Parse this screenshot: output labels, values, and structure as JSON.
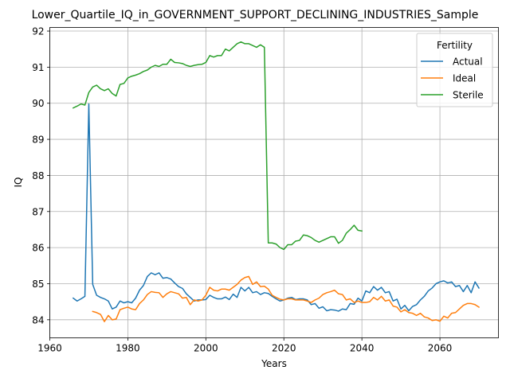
{
  "chart_data": {
    "type": "line",
    "title": "Lower_Quartile_IQ_in_GOVERNMENT_SUPPORT_DECLINING_INDUSTRIES_Sample",
    "xlabel": "Years",
    "ylabel": "IQ",
    "xlim": [
      1960,
      2075
    ],
    "ylim": [
      83.5,
      92.1
    ],
    "xticks": [
      1960,
      1980,
      2000,
      2020,
      2040,
      2060
    ],
    "yticks": [
      84,
      85,
      86,
      87,
      88,
      89,
      90,
      91,
      92
    ],
    "grid": true,
    "legend": {
      "title": "Fertility",
      "placement": "top-right"
    },
    "series": [
      {
        "name": "Actual",
        "color": "#1f77b4",
        "x": [
          1966,
          1967,
          1968,
          1969,
          1970,
          1971,
          1972,
          1973,
          1974,
          1975,
          1976,
          1977,
          1978,
          1979,
          1980,
          1981,
          1982,
          1983,
          1984,
          1985,
          1986,
          1987,
          1988,
          1989,
          1990,
          1991,
          1992,
          1993,
          1994,
          1995,
          1996,
          1997,
          1998,
          1999,
          2000,
          2001,
          2002,
          2003,
          2004,
          2005,
          2006,
          2007,
          2008,
          2009,
          2010,
          2011,
          2012,
          2013,
          2014,
          2015,
          2016,
          2017,
          2018,
          2019,
          2020,
          2021,
          2022,
          2023,
          2024,
          2025,
          2026,
          2027,
          2028,
          2029,
          2030,
          2031,
          2032,
          2033,
          2034,
          2035,
          2036,
          2037,
          2038,
          2039,
          2040,
          2041,
          2042,
          2043,
          2044,
          2045,
          2046,
          2047,
          2048,
          2049,
          2050,
          2051,
          2052,
          2053,
          2054,
          2055,
          2056,
          2057,
          2058,
          2059,
          2060,
          2061,
          2062,
          2063,
          2064,
          2065,
          2066,
          2067,
          2068,
          2069,
          2070
        ],
        "values": [
          84.6,
          84.52,
          84.58,
          84.65,
          89.98,
          84.98,
          84.68,
          84.62,
          84.58,
          84.52,
          84.3,
          84.35,
          84.52,
          84.47,
          84.5,
          84.47,
          84.6,
          84.82,
          84.95,
          85.2,
          85.3,
          85.25,
          85.3,
          85.15,
          85.17,
          85.13,
          85.02,
          84.92,
          84.87,
          84.72,
          84.62,
          84.52,
          84.55,
          84.55,
          84.56,
          84.68,
          84.62,
          84.58,
          84.58,
          84.63,
          84.56,
          84.71,
          84.62,
          84.9,
          84.8,
          84.9,
          84.75,
          84.78,
          84.7,
          84.75,
          84.73,
          84.65,
          84.58,
          84.52,
          84.55,
          84.6,
          84.62,
          84.56,
          84.58,
          84.58,
          84.55,
          84.42,
          84.45,
          84.32,
          84.36,
          84.25,
          84.28,
          84.27,
          84.24,
          84.3,
          84.28,
          84.45,
          84.43,
          84.6,
          84.52,
          84.8,
          84.75,
          84.92,
          84.82,
          84.9,
          84.75,
          84.78,
          84.52,
          84.57,
          84.3,
          84.4,
          84.25,
          84.37,
          84.42,
          84.55,
          84.65,
          84.8,
          84.88,
          85.0,
          85.05,
          85.08,
          85.02,
          85.05,
          84.92,
          84.95,
          84.78,
          84.95,
          84.75,
          85.05,
          84.88
        ]
      },
      {
        "name": "Ideal",
        "color": "#ff7f0e",
        "x": [
          1971,
          1972,
          1973,
          1974,
          1975,
          1976,
          1977,
          1978,
          1979,
          1980,
          1981,
          1982,
          1983,
          1984,
          1985,
          1986,
          1987,
          1988,
          1989,
          1990,
          1991,
          1992,
          1993,
          1994,
          1995,
          1996,
          1997,
          1998,
          1999,
          2000,
          2001,
          2002,
          2003,
          2004,
          2005,
          2006,
          2007,
          2008,
          2009,
          2010,
          2011,
          2012,
          2013,
          2014,
          2015,
          2016,
          2017,
          2018,
          2019,
          2020,
          2021,
          2022,
          2023,
          2024,
          2025,
          2026,
          2027,
          2028,
          2029,
          2030,
          2031,
          2032,
          2033,
          2034,
          2035,
          2036,
          2037,
          2038,
          2039,
          2040,
          2041,
          2042,
          2043,
          2044,
          2045,
          2046,
          2047,
          2048,
          2049,
          2050,
          2051,
          2052,
          2053,
          2054,
          2055,
          2056,
          2057,
          2058,
          2059,
          2060,
          2061,
          2062,
          2063,
          2064,
          2065,
          2066,
          2067,
          2068,
          2069,
          2070
        ],
        "values": [
          84.23,
          84.2,
          84.15,
          83.95,
          84.12,
          84.0,
          84.02,
          84.28,
          84.32,
          84.35,
          84.3,
          84.28,
          84.45,
          84.55,
          84.7,
          84.78,
          84.76,
          84.75,
          84.62,
          84.72,
          84.78,
          84.75,
          84.72,
          84.6,
          84.62,
          84.42,
          84.55,
          84.52,
          84.55,
          84.68,
          84.9,
          84.82,
          84.8,
          84.85,
          84.85,
          84.82,
          84.9,
          84.98,
          85.1,
          85.17,
          85.2,
          84.98,
          85.05,
          84.92,
          84.93,
          84.85,
          84.68,
          84.62,
          84.57,
          84.55,
          84.58,
          84.58,
          84.55,
          84.55,
          84.55,
          84.52,
          84.48,
          84.55,
          84.6,
          84.7,
          84.75,
          84.78,
          84.82,
          84.72,
          84.7,
          84.55,
          84.58,
          84.48,
          84.52,
          84.48,
          84.48,
          84.5,
          84.62,
          84.55,
          84.65,
          84.52,
          84.55,
          84.38,
          84.35,
          84.22,
          84.28,
          84.2,
          84.18,
          84.12,
          84.18,
          84.08,
          84.05,
          83.98,
          84.0,
          83.96,
          84.1,
          84.05,
          84.18,
          84.2,
          84.3,
          84.4,
          84.45,
          84.45,
          84.42,
          84.35
        ]
      },
      {
        "name": "Sterile",
        "color": "#2ca02c",
        "x": [
          1966,
          1967,
          1968,
          1969,
          1970,
          1971,
          1972,
          1973,
          1974,
          1975,
          1976,
          1977,
          1978,
          1979,
          1980,
          1981,
          1982,
          1983,
          1984,
          1985,
          1986,
          1987,
          1988,
          1989,
          1990,
          1991,
          1992,
          1993,
          1994,
          1995,
          1996,
          1997,
          1998,
          1999,
          2000,
          2001,
          2002,
          2003,
          2004,
          2005,
          2006,
          2007,
          2008,
          2009,
          2010,
          2011,
          2012,
          2013,
          2014,
          2015,
          2016,
          2017,
          2018,
          2019,
          2020,
          2021,
          2022,
          2023,
          2024,
          2025,
          2026,
          2027,
          2028,
          2029,
          2030,
          2031,
          2032,
          2033,
          2034,
          2035,
          2036,
          2037,
          2038,
          2039,
          2040
        ],
        "values": [
          89.87,
          89.92,
          89.98,
          89.95,
          90.3,
          90.45,
          90.5,
          90.4,
          90.35,
          90.4,
          90.27,
          90.2,
          90.52,
          90.55,
          90.7,
          90.75,
          90.78,
          90.82,
          90.88,
          90.92,
          91.0,
          91.05,
          91.02,
          91.08,
          91.08,
          91.22,
          91.13,
          91.12,
          91.1,
          91.05,
          91.02,
          91.05,
          91.07,
          91.08,
          91.13,
          91.32,
          91.28,
          91.32,
          91.32,
          91.5,
          91.45,
          91.55,
          91.65,
          91.7,
          91.65,
          91.65,
          91.6,
          91.55,
          91.62,
          91.55,
          86.13,
          86.13,
          86.1,
          86.0,
          85.95,
          86.08,
          86.08,
          86.18,
          86.2,
          86.35,
          86.33,
          86.28,
          86.2,
          86.15,
          86.2,
          86.25,
          86.3,
          86.3,
          86.12,
          86.2,
          86.4,
          86.5,
          86.62,
          86.48,
          86.46
        ]
      }
    ]
  }
}
